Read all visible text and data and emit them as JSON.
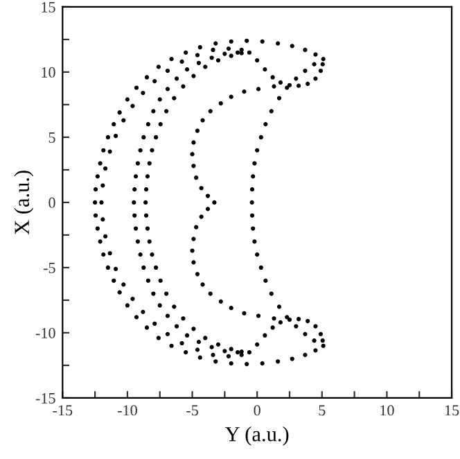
{
  "chart_data": {
    "type": "scatter",
    "xlabel": "Y (a.u.)",
    "ylabel": "X (a.u.)",
    "xlim": [
      -15,
      15
    ],
    "ylim": [
      -15,
      15
    ],
    "xticks": [
      -15,
      {
        "value": -12.5,
        "label": null
      },
      -10,
      {
        "value": -7.5,
        "label": null
      },
      -5,
      {
        "value": -2.5,
        "label": null
      },
      0,
      {
        "value": 2.5,
        "label": null
      },
      5,
      {
        "value": 7.5,
        "label": null
      },
      10,
      {
        "value": 12.5,
        "label": null
      },
      15
    ],
    "yticks": [
      -15,
      {
        "value": -12.5,
        "label": null
      },
      -10,
      {
        "value": -7.5,
        "label": null
      },
      -5,
      {
        "value": -2.5,
        "label": null
      },
      0,
      {
        "value": 2.5,
        "label": null
      },
      5,
      {
        "value": 7.5,
        "label": null
      },
      10,
      {
        "value": 12.5,
        "label": null
      },
      15
    ],
    "grid": false,
    "legend": false,
    "marker": "circle",
    "series": [
      {
        "color": "#000000",
        "x": [
          -12.5,
          -12.45,
          -12.3,
          -12.1,
          -11.85,
          -11.5,
          -11.05,
          -10.6,
          -10.0,
          -9.3,
          -8.5,
          -7.6,
          -6.6,
          -5.5,
          -4.4,
          -3.2,
          -2.0,
          -0.8,
          0.4,
          1.6,
          2.7,
          3.7,
          4.5,
          5.1,
          -12.45,
          -12.3,
          -12.1,
          -11.85,
          -11.5,
          -11.05,
          -10.6,
          -10.0,
          -9.3,
          -8.5,
          -7.6,
          -6.6,
          -5.5,
          -4.4,
          -3.2,
          -2.0,
          -0.8,
          0.4,
          1.6,
          2.7,
          3.7,
          4.5,
          5.1,
          -0.4,
          -0.38,
          -0.32,
          -0.2,
          0,
          0.3,
          0.65,
          1.1,
          1.7,
          2.3,
          3.0,
          3.7,
          4.4,
          -0.38,
          -0.32,
          -0.2,
          0,
          0.3,
          0.65,
          1.1,
          1.7,
          2.3,
          3.0,
          3.7,
          4.4
        ],
        "values": [
          0,
          1,
          2,
          3,
          4,
          5,
          6,
          6.9,
          7.9,
          8.8,
          9.6,
          10.4,
          11.0,
          11.5,
          11.9,
          12.2,
          12.35,
          12.4,
          12.35,
          12.2,
          12.0,
          11.7,
          11.35,
          11.0,
          -1,
          -2,
          -3,
          -4,
          -5,
          -6,
          -6.9,
          -7.9,
          -8.8,
          -9.6,
          -10.4,
          -11.0,
          -11.5,
          -11.9,
          -12.2,
          -12.35,
          -12.4,
          -12.35,
          -12.2,
          -12.0,
          -11.7,
          -11.35,
          -11.0,
          0,
          1,
          2,
          3,
          4,
          5,
          6,
          7,
          8,
          8.8,
          9.5,
          10.1,
          10.6,
          -1,
          -2,
          -3,
          -4,
          -5,
          -6,
          -7,
          -8,
          -8.8,
          -9.5,
          -10.1,
          -10.6
        ]
      },
      {
        "color": "#000000",
        "x": [
          -8.6,
          -8.55,
          -8.45,
          -8.3,
          -8.1,
          -7.8,
          -7.45,
          -7.0,
          -6.4,
          -5.7,
          -4.9,
          -4.0,
          -3.0,
          -2.0,
          -1.2,
          -0.6,
          0.0,
          0.6,
          1.2,
          1.8,
          2.5,
          3.2,
          3.9,
          4.5,
          4.9,
          5.05,
          -8.55,
          -8.45,
          -8.3,
          -8.1,
          -7.8,
          -7.45,
          -7.0,
          -6.4,
          -5.7,
          -4.9,
          -4.0,
          -3.0,
          -2.0,
          -1.2,
          -0.6,
          0.0,
          0.6,
          1.2,
          1.8,
          2.5,
          3.2,
          3.9,
          4.5,
          4.9,
          5.05
        ],
        "values": [
          0,
          1,
          2,
          3,
          4,
          5,
          6,
          7,
          8,
          8.9,
          9.7,
          10.4,
          10.9,
          11.25,
          11.45,
          11.5,
          10.9,
          10.2,
          9.6,
          9.2,
          9.0,
          8.95,
          9.1,
          9.5,
          10.1,
          10.6,
          -1,
          -2,
          -3,
          -4,
          -5,
          -6,
          -7,
          -8,
          -8.9,
          -9.7,
          -10.4,
          -10.9,
          -11.25,
          -11.45,
          -11.5,
          -10.9,
          -10.2,
          -9.6,
          -9.2,
          -9.0,
          -8.95,
          -9.1,
          -9.5,
          -10.1,
          -10.6
        ]
      },
      {
        "color": "#000000",
        "x": [
          -12,
          -11.9,
          -11.7,
          -11.35,
          -10.9,
          -10.3,
          -9.6,
          -8.8,
          -7.9,
          -6.9,
          -5.8,
          -4.6,
          -3.4,
          -2.2,
          -1.2,
          -11.9,
          -11.7,
          -11.35,
          -10.9,
          -10.3,
          -9.6,
          -8.8,
          -7.9,
          -6.9,
          -5.8,
          -4.6,
          -3.4,
          -2.2,
          -1.2
        ],
        "values": [
          0,
          1.3,
          2.6,
          3.9,
          5.1,
          6.3,
          7.4,
          8.4,
          9.3,
          10.1,
          10.8,
          11.3,
          11.7,
          11.8,
          11.7,
          -1.3,
          -2.6,
          -3.9,
          -5.1,
          -6.3,
          -7.4,
          -8.4,
          -9.3,
          -10.1,
          -10.8,
          -11.3,
          -11.7,
          -11.8,
          -11.7
        ]
      },
      {
        "color": "#000000",
        "x": [
          -9.5,
          -9.45,
          -9.35,
          -9.2,
          -9.0,
          -8.75,
          -8.4,
          -8.0,
          -7.5,
          -6.9,
          -6.2,
          -5.4,
          -4.5,
          -3.5,
          -2.5,
          -1.5,
          -9.45,
          -9.35,
          -9.2,
          -9.0,
          -8.75,
          -8.4,
          -8.0,
          -7.5,
          -6.9,
          -6.2,
          -5.4,
          -4.5,
          -3.5,
          -2.5,
          -1.5
        ],
        "values": [
          0,
          1,
          2,
          3,
          4,
          5,
          6,
          7,
          7.9,
          8.7,
          9.5,
          10.2,
          10.7,
          11.1,
          11.4,
          11.5,
          -1,
          -2,
          -3,
          -4,
          -5,
          -6,
          -7,
          -7.9,
          -8.7,
          -9.5,
          -10.2,
          -10.7,
          -11.1,
          -11.4,
          -11.5
        ]
      },
      {
        "color": "#000000",
        "x": [
          -3.3,
          -3.8,
          -4.3,
          -4.7,
          -4.9,
          -5.0,
          -4.9,
          -4.6,
          -4.2,
          -3.6,
          -2.8,
          -2.0,
          -1.0,
          0.1,
          1.3,
          -3.8,
          -4.3,
          -4.7,
          -4.9,
          -5.0,
          -4.9,
          -4.6,
          -4.2,
          -3.6,
          -2.8,
          -2.0,
          -1.0,
          0.1,
          1.3
        ],
        "values": [
          0,
          0.5,
          1.1,
          1.9,
          2.8,
          3.7,
          4.6,
          5.5,
          6.3,
          7.0,
          7.6,
          8.1,
          8.5,
          8.7,
          8.9,
          -0.5,
          -1.1,
          -1.9,
          -2.8,
          -3.7,
          -4.6,
          -5.5,
          -6.3,
          -7.0,
          -7.6,
          -8.1,
          -8.5,
          -8.7,
          -8.9
        ]
      }
    ]
  }
}
